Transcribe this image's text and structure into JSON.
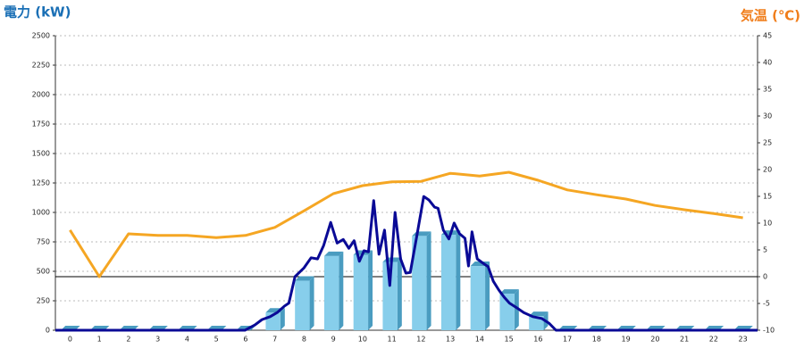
{
  "chart_data": {
    "type": "bar",
    "y_label": "電力 (kW)",
    "y2_label": "気温 (℃)",
    "y_label_color": "#1a6fb5",
    "y2_label_color": "#f07d1a",
    "categories": [
      "0",
      "1",
      "2",
      "3",
      "4",
      "5",
      "6",
      "7",
      "8",
      "9",
      "10",
      "11",
      "12",
      "13",
      "14",
      "15",
      "16",
      "17",
      "18",
      "19",
      "20",
      "21",
      "22",
      "23"
    ],
    "xlim": [
      -0.5,
      23.5
    ],
    "ylim": [
      0,
      2500
    ],
    "yticks": [
      0,
      250,
      500,
      750,
      1000,
      1250,
      1500,
      1750,
      2000,
      2250,
      2500
    ],
    "y2lim": [
      -10,
      45
    ],
    "y2ticks": [
      -10,
      -5,
      0,
      5,
      10,
      15,
      20,
      25,
      30,
      35,
      40,
      45
    ],
    "y2_reference": 0,
    "grid": true,
    "series": [
      {
        "type": "bar",
        "color": "#87ceeb",
        "side_color": "#4a9cc0",
        "values": [
          0,
          0,
          0,
          0,
          0,
          0,
          0,
          150,
          420,
          630,
          640,
          580,
          800,
          810,
          545,
          310,
          120,
          0,
          0,
          0,
          0,
          0,
          0,
          0
        ]
      },
      {
        "type": "line",
        "color": "#0a0a96",
        "x": [
          -0.5,
          5.98,
          6.32,
          6.56,
          6.84,
          7.08,
          7.33,
          7.48,
          7.69,
          8.0,
          8.24,
          8.46,
          8.67,
          8.91,
          9.13,
          9.34,
          9.53,
          9.71,
          9.89,
          10.05,
          10.2,
          10.38,
          10.56,
          10.75,
          10.93,
          11.11,
          11.3,
          11.48,
          11.63,
          11.85,
          12.09,
          12.27,
          12.46,
          12.58,
          12.76,
          12.95,
          13.13,
          13.31,
          13.5,
          13.62,
          13.74,
          13.92,
          14.11,
          14.29,
          14.47,
          14.66,
          14.84,
          15.02,
          15.27,
          15.51,
          15.82,
          16.12,
          16.37,
          16.61,
          23.5
        ],
        "values": [
          0,
          0,
          45,
          90,
          115,
          150,
          205,
          230,
          455,
          530,
          615,
          605,
          720,
          915,
          740,
          770,
          695,
          760,
          585,
          675,
          665,
          1100,
          645,
          850,
          380,
          1000,
          605,
          485,
          490,
          795,
          1135,
          1105,
          1045,
          1035,
          850,
          775,
          910,
          820,
          780,
          545,
          835,
          605,
          570,
          540,
          415,
          340,
          280,
          230,
          190,
          150,
          115,
          100,
          60,
          0,
          0
        ]
      },
      {
        "type": "line",
        "axis": "y2",
        "color": "#f5a623",
        "values": [
          8.7,
          0,
          8.0,
          7.7,
          7.7,
          7.3,
          7.7,
          9.2,
          12.3,
          15.5,
          17.0,
          17.7,
          17.8,
          19.3,
          18.8,
          19.5,
          18.0,
          16.2,
          15.3,
          14.5,
          13.3,
          12.5,
          11.8,
          11.0
        ]
      }
    ]
  }
}
